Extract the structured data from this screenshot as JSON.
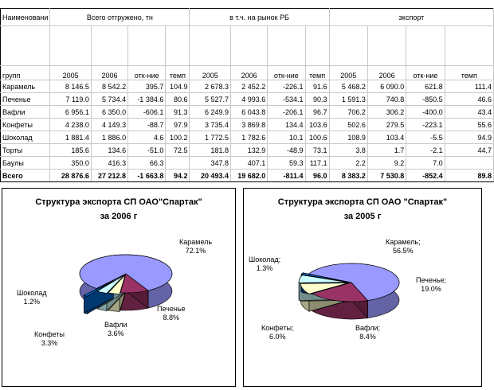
{
  "sheet": {
    "header": {
      "name_col": "Наименовани",
      "group_total": "Всего отгружено, тн",
      "group_rb": "в т.ч. на рынок РБ",
      "group_export": "экспорт",
      "groups_label": "групп",
      "cols": [
        "2005",
        "2006",
        "отк-ние",
        "темп",
        "2005",
        "2006",
        "отк-ние",
        "темп",
        "2005",
        "2006",
        "отк-ние",
        "темп"
      ]
    },
    "rows": [
      {
        "name": "Карамель",
        "cells": [
          "8 146.5",
          "8 542.2",
          "395.7",
          "104.9",
          "2 678.3",
          "2 452.2",
          "-226.1",
          "91.6",
          "5 468.2",
          "6 090.0",
          "621.8",
          "111.4"
        ]
      },
      {
        "name": "Печенье",
        "cells": [
          "7 119.0",
          "5 734.4",
          "-1 384.6",
          "80.6",
          "5 527.7",
          "4 993.6",
          "-534.1",
          "90.3",
          "1 591.3",
          "740.8",
          "-850.5",
          "46.6"
        ]
      },
      {
        "name": "Вафли",
        "cells": [
          "6 956.1",
          "6 350.0",
          "-606.1",
          "91.3",
          "6 249.9",
          "6 043.8",
          "-206.1",
          "96.7",
          "706.2",
          "306.2",
          "-400.0",
          "43.4"
        ]
      },
      {
        "name": "Конфеты",
        "cells": [
          "4 238.0",
          "4 149.3",
          "-88.7",
          "97.9",
          "3 735.4",
          "3 869.8",
          "134.4",
          "103.6",
          "502.6",
          "279.5",
          "-223.1",
          "55.6"
        ]
      },
      {
        "name": "Шоколад",
        "cells": [
          "1 881.4",
          "1 886.0",
          "4.6",
          "100.2",
          "1 772.5",
          "1 782.6",
          "10.1",
          "100.6",
          "108.9",
          "103.4",
          "-5.5",
          "94.9"
        ]
      },
      {
        "name": "Торты",
        "cells": [
          "185.6",
          "134.6",
          "-51.0",
          "72.5",
          "181.8",
          "132.9",
          "-48.9",
          "73.1",
          "3.8",
          "1.7",
          "-2.1",
          "44.7"
        ]
      },
      {
        "name": "Баулы",
        "cells": [
          "350.0",
          "416.3",
          "66.3",
          "",
          "347.8",
          "407.1",
          "59.3",
          "117.1",
          "2.2",
          "9.2",
          "7.0",
          ""
        ]
      },
      {
        "name": "Всего",
        "cells": [
          "28 876.6",
          "27 212.8",
          "-1 663.8",
          "94.2",
          "20 493.4",
          "19 682.0",
          "-811.4",
          "96.0",
          "8 383.2",
          "7 530.8",
          "-852.4",
          "89.8"
        ]
      }
    ]
  },
  "colors": {
    "karamel": "#9999ff",
    "pechene": "#993366",
    "vafli": "#ffffcc",
    "konfety": "#ccffff",
    "shokolad": "#0066cc"
  },
  "charts": {
    "c2006": {
      "title_line1": "Структура экспорта СП ОАО\"Спартак\"",
      "title_line2": "за   2006 г",
      "labels": {
        "karamel": [
          "Карамель",
          "72.1%"
        ],
        "pechene": [
          "Печенье",
          "8.8%"
        ],
        "vafli": [
          "Вафли",
          "3.6%"
        ],
        "konfety": [
          "Конфеты",
          "3.3%"
        ],
        "shokolad": [
          "Шоколад",
          "1.2%"
        ]
      }
    },
    "c2005": {
      "title_line1": "Структура экспорта СП ОАО \"Спартак\"",
      "title_line2": "за 2005 г",
      "labels": {
        "karamel": [
          "Карамель;",
          "56.5%"
        ],
        "pechene": [
          "Печенье;",
          "19.0%"
        ],
        "vafli": [
          "Вафли;",
          "8.4%"
        ],
        "konfety": [
          "Конфеты;",
          "6.0%"
        ],
        "shokolad": [
          "Шоколад;",
          "1.3%"
        ]
      }
    }
  },
  "chart_data": [
    {
      "type": "pie",
      "title": "Структура экспорта СП ОАО\"Спартак\" за 2006 г",
      "categories": [
        "Карамель",
        "Печенье",
        "Вафли",
        "Конфеты",
        "Шоколад"
      ],
      "values": [
        72.1,
        8.8,
        3.6,
        3.3,
        1.2
      ],
      "unit": "%",
      "exploded": [
        "Шоколад"
      ]
    },
    {
      "type": "pie",
      "title": "Структура экспорта СП ОАО \"Спартак\" за 2005 г",
      "categories": [
        "Карамель",
        "Печенье",
        "Вафли",
        "Конфеты",
        "Шоколад"
      ],
      "values": [
        56.5,
        19.0,
        8.4,
        6.0,
        1.3
      ],
      "unit": "%"
    }
  ]
}
